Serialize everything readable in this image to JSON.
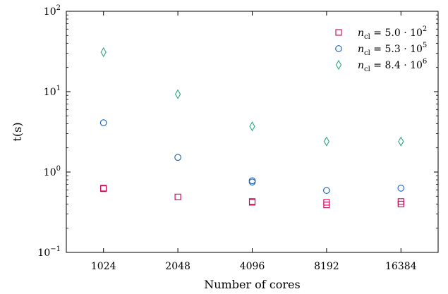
{
  "chart_data": {
    "type": "scatter",
    "title": "",
    "xlabel": "Number of cores",
    "ylabel": "t(s)",
    "x_scale": "log2",
    "y_scale": "log10",
    "categories": [
      "1024",
      "2048",
      "4096",
      "8192",
      "16384"
    ],
    "xlim": [
      724,
      23170
    ],
    "ylim": [
      0.1,
      100
    ],
    "y_ticks": [
      {
        "value": 0.1,
        "mantissa": "10",
        "exponent": "−1"
      },
      {
        "value": 1,
        "mantissa": "10",
        "exponent": "0"
      },
      {
        "value": 10,
        "mantissa": "10",
        "exponent": "1"
      },
      {
        "value": 100,
        "mantissa": "10",
        "exponent": "2"
      }
    ],
    "grid": false,
    "legend_position": "top-right",
    "series": [
      {
        "marker": "square",
        "color": "#cc0055",
        "legend_label": {
          "var": "n",
          "sub": "cl",
          "eq": " = 5.0 · 10",
          "exp": "2"
        },
        "points": [
          {
            "x": 1024,
            "y": 0.62
          },
          {
            "x": 1024,
            "y": 0.63
          },
          {
            "x": 2048,
            "y": 0.49
          },
          {
            "x": 4096,
            "y": 0.42
          },
          {
            "x": 4096,
            "y": 0.43
          },
          {
            "x": 8192,
            "y": 0.39
          },
          {
            "x": 8192,
            "y": 0.42
          },
          {
            "x": 16384,
            "y": 0.4
          },
          {
            "x": 16384,
            "y": 0.43
          }
        ]
      },
      {
        "marker": "circle",
        "color": "#1a5fb4",
        "legend_label": {
          "var": "n",
          "sub": "cl",
          "eq": " = 5.3 · 10",
          "exp": "5"
        },
        "points": [
          {
            "x": 1024,
            "y": 4.1
          },
          {
            "x": 2048,
            "y": 1.52
          },
          {
            "x": 4096,
            "y": 0.75
          },
          {
            "x": 4096,
            "y": 0.78
          },
          {
            "x": 8192,
            "y": 0.59
          },
          {
            "x": 16384,
            "y": 0.63
          }
        ]
      },
      {
        "marker": "diamond",
        "color": "#2aa87a",
        "legend_label": {
          "var": "n",
          "sub": "cl",
          "eq": " = 8.4 · 10",
          "exp": "6"
        },
        "points": [
          {
            "x": 1024,
            "y": 31
          },
          {
            "x": 2048,
            "y": 9.3
          },
          {
            "x": 4096,
            "y": 3.7
          },
          {
            "x": 8192,
            "y": 2.4
          },
          {
            "x": 16384,
            "y": 2.4
          }
        ]
      }
    ]
  }
}
